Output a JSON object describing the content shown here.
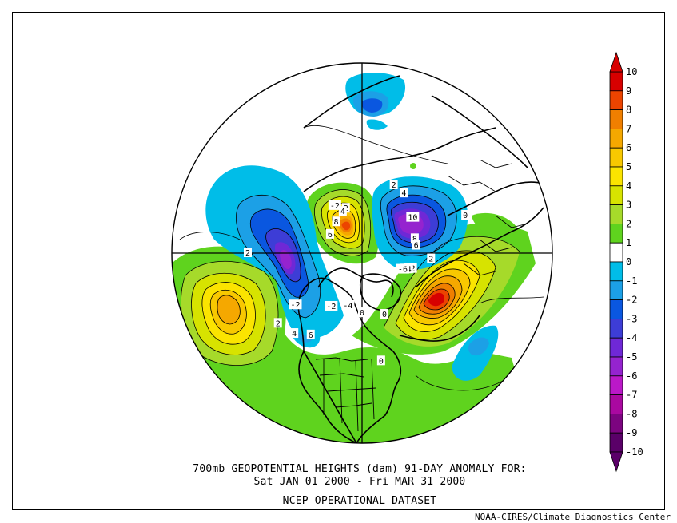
{
  "title": {
    "line1": "700mb GEOPOTENTIAL HEIGHTS (dam)   91-DAY ANOMALY FOR:",
    "line2": "Sat JAN 01 2000 - Fri MAR 31 2000",
    "line3": "NCEP OPERATIONAL DATASET"
  },
  "footer": "NOAA-CIRES/Climate Diagnostics Center",
  "colorbar": {
    "levels": [
      "10",
      "9",
      "8",
      "7",
      "6",
      "5",
      "4",
      "3",
      "2",
      "1",
      "0",
      "-1",
      "-2",
      "-3",
      "-4",
      "-5",
      "-6",
      "-7",
      "-8",
      "-9",
      "-10"
    ],
    "colors": [
      "#d70000",
      "#ec4400",
      "#f07f00",
      "#f5a800",
      "#f8c800",
      "#fbe400",
      "#d7e300",
      "#a6da2a",
      "#5fd31e",
      "#ffffff",
      "#ffffff",
      "#00bde8",
      "#1ca0e6",
      "#0a57e0",
      "#3d3dd6",
      "#6f28d6",
      "#9523cf",
      "#bb18c8",
      "#aa08a0",
      "#7c0480",
      "#5a0068"
    ]
  },
  "contour_labels": [
    {
      "text": "-2",
      "lat": 58,
      "lon": -30
    },
    {
      "text": "2",
      "lat": 62,
      "lon": -20
    },
    {
      "text": "4",
      "lat": 63,
      "lon": -25
    },
    {
      "text": "8",
      "lat": 66,
      "lon": -40
    },
    {
      "text": "6",
      "lat": 68,
      "lon": -60
    },
    {
      "text": "-2",
      "lat": 60,
      "lon": 108
    },
    {
      "text": "-4",
      "lat": 62,
      "lon": 110
    },
    {
      "text": "-6",
      "lat": 64,
      "lon": 112
    },
    {
      "text": "-4",
      "lat": 58,
      "lon": -165
    },
    {
      "text": "-2",
      "lat": 54,
      "lon": -150
    },
    {
      "text": "6",
      "lat": 36,
      "lon": -148
    },
    {
      "text": "4",
      "lat": 32,
      "lon": -140
    },
    {
      "text": "2",
      "lat": 30,
      "lon": -130
    },
    {
      "text": "-2",
      "lat": 42,
      "lon": -128
    },
    {
      "text": "2",
      "lat": 28,
      "lon": -90
    },
    {
      "text": "0",
      "lat": 30,
      "lon": -190
    },
    {
      "text": "0",
      "lat": 52,
      "lon": -200
    },
    {
      "text": "10",
      "lat": 54,
      "lon": 55
    },
    {
      "text": "8",
      "lat": 58,
      "lon": 75
    },
    {
      "text": "6",
      "lat": 58,
      "lon": 82
    },
    {
      "text": "4",
      "lat": 48,
      "lon": 35
    },
    {
      "text": "2",
      "lat": 47,
      "lon": 25
    },
    {
      "text": "2",
      "lat": 50,
      "lon": 95
    },
    {
      "text": "0",
      "lat": 55,
      "lon": 180
    },
    {
      "text": "0",
      "lat": 30,
      "lon": 70
    }
  ]
}
